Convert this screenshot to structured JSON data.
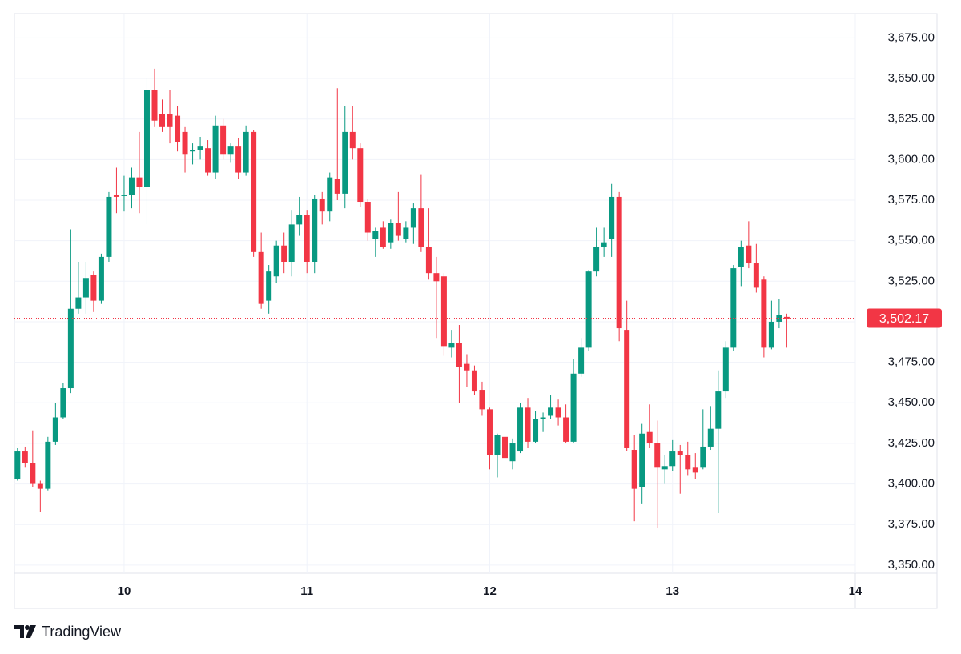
{
  "chart_data": {
    "type": "candlestick",
    "x": [
      9.4167,
      9.4583,
      9.5,
      9.5417,
      9.5833,
      9.625,
      9.6667,
      9.7083,
      9.75,
      9.7917,
      9.8333,
      9.875,
      9.9167,
      9.9583,
      10,
      10.0417,
      10.0833,
      10.125,
      10.1667,
      10.2083,
      10.25,
      10.2917,
      10.3333,
      10.375,
      10.4167,
      10.4583,
      10.5,
      10.5417,
      10.5833,
      10.625,
      10.6667,
      10.7083,
      10.75,
      10.7917,
      10.8333,
      10.875,
      10.9167,
      10.9583,
      11,
      11.0417,
      11.0833,
      11.125,
      11.1667,
      11.2083,
      11.25,
      11.2917,
      11.3333,
      11.375,
      11.4167,
      11.4583,
      11.5,
      11.5417,
      11.5833,
      11.625,
      11.6667,
      11.7083,
      11.75,
      11.7917,
      11.8333,
      11.875,
      11.9167,
      11.9583,
      12,
      12.0417,
      12.0833,
      12.125,
      12.1667,
      12.2083,
      12.25,
      12.2917,
      12.3333,
      12.375,
      12.4167,
      12.4583,
      12.5,
      12.5417,
      12.5833,
      12.625,
      12.6667,
      12.7083,
      12.75,
      12.7917,
      12.8333,
      12.875,
      12.9167,
      12.9583,
      13,
      13.0417,
      13.0833,
      13.125,
      13.1667,
      13.2083,
      13.25,
      13.2917,
      13.3333,
      13.375,
      13.4167,
      13.4583,
      13.5,
      13.5417,
      13.5833,
      13.625
    ],
    "open": [
      3403,
      3420,
      3413,
      3400,
      3397,
      3426,
      3441,
      3459,
      3508,
      3515,
      3529,
      3513,
      3540,
      3578,
      3578,
      3578,
      3589,
      3583,
      3643,
      3628,
      3628,
      3627,
      3617,
      3605,
      3606,
      3607,
      3592,
      3621,
      3603,
      3608,
      3592,
      3617,
      3543,
      3513,
      3528,
      3547,
      3537,
      3560,
      3566,
      3537,
      3576,
      3568,
      3588,
      3579,
      3617,
      3607,
      3574,
      3551,
      3558,
      3549,
      3561,
      3551,
      3558,
      3570,
      3546,
      3530,
      3528,
      3484,
      3487,
      3474,
      3470,
      3458,
      3446,
      3418,
      3429,
      3414,
      3420,
      3447,
      3426,
      3440,
      3442,
      3447,
      3441,
      3426,
      3468,
      3484,
      3531,
      3546,
      3551,
      3577,
      3495,
      3421,
      3398,
      3432,
      3425,
      3409,
      3411,
      3420,
      3418,
      3410,
      3410,
      3423,
      3434,
      3457,
      3484,
      3534,
      3547,
      3536,
      3526,
      3484,
      3500,
      3503
    ],
    "high": [
      3422,
      3423,
      3433,
      3402,
      3429,
      3450,
      3462,
      3557,
      3537,
      3537,
      3531,
      3542,
      3580,
      3595,
      3590,
      3595,
      3617,
      3650,
      3656,
      3637,
      3643,
      3633,
      3620,
      3610,
      3614,
      3612,
      3627,
      3625,
      3610,
      3613,
      3621,
      3618,
      3555,
      3535,
      3550,
      3555,
      3569,
      3577,
      3569,
      3578,
      3580,
      3592,
      3644,
      3633,
      3633,
      3610,
      3576,
      3558,
      3562,
      3563,
      3580,
      3562,
      3573,
      3591,
      3570,
      3540,
      3530,
      3495,
      3498,
      3480,
      3473,
      3463,
      3447,
      3431,
      3432,
      3428,
      3450,
      3453,
      3445,
      3444,
      3455,
      3452,
      3449,
      3477,
      3490,
      3532,
      3558,
      3558,
      3585,
      3580,
      3513,
      3430,
      3437,
      3449,
      3439,
      3418,
      3427,
      3424,
      3426,
      3419,
      3446,
      3448,
      3470,
      3488,
      3535,
      3550,
      3562,
      3548,
      3528,
      3513,
      3514,
      3505
    ],
    "low": [
      3402,
      3410,
      3398,
      3383,
      3396,
      3424,
      3440,
      3456,
      3505,
      3505,
      3506,
      3511,
      3537,
      3567,
      3568,
      3570,
      3567,
      3560,
      3620,
      3617,
      3610,
      3605,
      3592,
      3597,
      3600,
      3590,
      3588,
      3600,
      3598,
      3588,
      3590,
      3540,
      3508,
      3505,
      3524,
      3530,
      3528,
      3553,
      3530,
      3530,
      3560,
      3562,
      3575,
      3570,
      3600,
      3571,
      3550,
      3540,
      3545,
      3545,
      3550,
      3549,
      3548,
      3543,
      3526,
      3490,
      3479,
      3478,
      3450,
      3460,
      3455,
      3442,
      3409,
      3404,
      3412,
      3409,
      3419,
      3422,
      3425,
      3432,
      3440,
      3436,
      3425,
      3425,
      3466,
      3482,
      3528,
      3540,
      3540,
      3488,
      3420,
      3377,
      3388,
      3422,
      3373,
      3400,
      3408,
      3394,
      3405,
      3403,
      3409,
      3421,
      3382,
      3453,
      3482,
      3522,
      3533,
      3518,
      3478,
      3483,
      3496,
      3484
    ],
    "close": [
      3420,
      3413,
      3400,
      3397,
      3426,
      3441,
      3459,
      3508,
      3515,
      3527,
      3513,
      3540,
      3577,
      3577,
      3578,
      3589,
      3583,
      3643,
      3624,
      3620,
      3620,
      3611,
      3603,
      3606,
      3608,
      3592,
      3621,
      3603,
      3608,
      3592,
      3617,
      3543,
      3511,
      3531,
      3547,
      3537,
      3560,
      3566,
      3537,
      3576,
      3568,
      3589,
      3579,
      3617,
      3607,
      3574,
      3555,
      3556,
      3546,
      3561,
      3553,
      3558,
      3570,
      3546,
      3530,
      3525,
      3485,
      3487,
      3472,
      3470,
      3457,
      3446,
      3418,
      3430,
      3416,
      3425,
      3447,
      3426,
      3440,
      3441,
      3447,
      3441,
      3426,
      3468,
      3484,
      3531,
      3546,
      3549,
      3577,
      3496,
      3422,
      3397,
      3431,
      3425,
      3410,
      3411,
      3420,
      3418,
      3409,
      3407,
      3423,
      3434,
      3457,
      3484,
      3533,
      3546,
      3536,
      3521,
      3484,
      3500,
      3504,
      3502
    ],
    "up_color": "#089981",
    "down_color": "#f23645",
    "xlim": [
      9.4,
      14
    ],
    "xticks": [
      10,
      11,
      12,
      13,
      14
    ],
    "ylim": [
      3345,
      3690
    ],
    "yticks": [
      {
        "value": 3350,
        "label": "3,350.00"
      },
      {
        "value": 3375,
        "label": "3,375.00"
      },
      {
        "value": 3400,
        "label": "3,400.00"
      },
      {
        "value": 3425,
        "label": "3,425.00"
      },
      {
        "value": 3450,
        "label": "3,450.00"
      },
      {
        "value": 3475,
        "label": "3,475.00"
      },
      {
        "value": 3500,
        "label": "3,500.00"
      },
      {
        "value": 3525,
        "label": "3,525.00"
      },
      {
        "value": 3550,
        "label": "3,550.00"
      },
      {
        "value": 3575,
        "label": "3,575.00"
      },
      {
        "value": 3600,
        "label": "3,600.00"
      },
      {
        "value": 3625,
        "label": "3,625.00"
      },
      {
        "value": 3650,
        "label": "3,650.00"
      },
      {
        "value": 3675,
        "label": "3,675.00"
      }
    ],
    "last_price": {
      "value": 3502.17,
      "label": "3,502.17"
    },
    "grid": true
  },
  "footer": {
    "brand": "TradingView"
  }
}
